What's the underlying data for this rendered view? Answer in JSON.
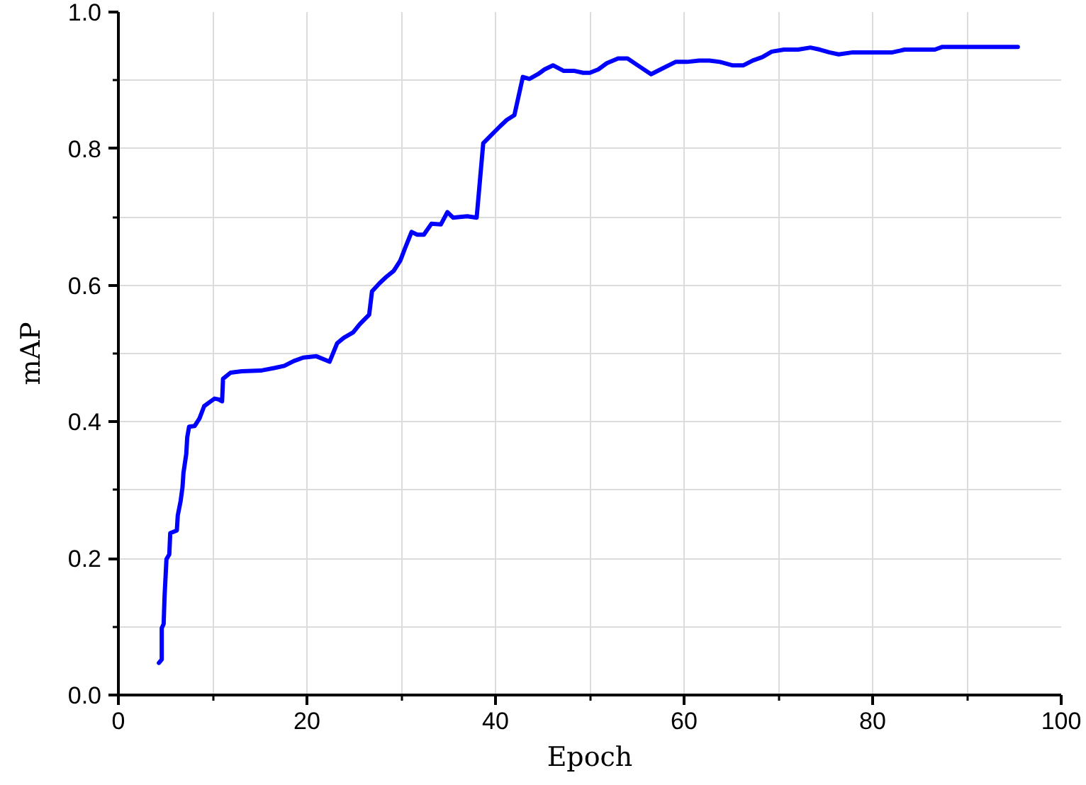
{
  "chart_data": {
    "type": "line",
    "xlabel": "Epoch",
    "ylabel": "mAP",
    "xlim": [
      0,
      100
    ],
    "ylim": [
      0,
      1.0
    ],
    "xticks": [
      0,
      {
        "value": 10,
        "label": null
      },
      20,
      {
        "value": 30,
        "label": null
      },
      40,
      {
        "value": 50,
        "label": null
      },
      60,
      {
        "value": 70,
        "label": null
      },
      80,
      {
        "value": 90,
        "label": null
      },
      100
    ],
    "yticks": [
      {
        "value": 0,
        "label": "0.0"
      },
      {
        "value": 0.1,
        "label": null
      },
      {
        "value": 0.2,
        "label": "0.2"
      },
      {
        "value": 0.3,
        "label": null
      },
      {
        "value": 0.4,
        "label": "0.4"
      },
      {
        "value": 0.5,
        "label": null
      },
      {
        "value": 0.6,
        "label": "0.6"
      },
      {
        "value": 0.7,
        "label": null
      },
      {
        "value": 0.8,
        "label": "0.8"
      },
      {
        "value": 0.9,
        "label": null
      },
      {
        "value": 1.0,
        "label": "1.0"
      }
    ],
    "grid": true,
    "marker": "none",
    "line_style": "solid",
    "x": [
      4.3,
      4.6,
      4.6,
      4.8,
      4.9,
      5.1,
      5.4,
      5.5,
      6.2,
      6.3,
      6.6,
      6.8,
      6.9,
      7.2,
      7.3,
      7.5,
      8.1,
      8.6,
      9.1,
      9.7,
      10.2,
      10.6,
      11.0,
      11.1,
      11.9,
      13.1,
      15.1,
      16.6,
      17.6,
      18.6,
      19.6,
      21.0,
      22.4,
      23.2,
      23.9,
      24.9,
      25.6,
      26.6,
      26.9,
      27.7,
      28.4,
      29.2,
      29.9,
      30.4,
      31.1,
      31.7,
      32.4,
      33.2,
      34.2,
      34.9,
      35.5,
      36.2,
      37.0,
      38.0,
      38.7,
      39.5,
      40.5,
      41.2,
      42.0,
      42.9,
      43.6,
      44.5,
      45.2,
      46.1,
      47.2,
      48.3,
      49.3,
      50.0,
      50.9,
      51.8,
      53.0,
      54.0,
      55.3,
      56.5,
      57.8,
      59.1,
      60.3,
      61.6,
      62.7,
      63.8,
      65.1,
      66.3,
      67.3,
      68.3,
      69.3,
      70.6,
      72.1,
      73.4,
      74.4,
      75.4,
      76.4,
      77.9,
      82.1,
      83.4,
      86.6,
      87.4,
      95.4
    ],
    "series": [
      {
        "color": "#0000ff",
        "values": [
          0.047,
          0.052,
          0.098,
          0.104,
          0.145,
          0.199,
          0.206,
          0.237,
          0.241,
          0.263,
          0.284,
          0.304,
          0.325,
          0.353,
          0.377,
          0.393,
          0.394,
          0.405,
          0.423,
          0.429,
          0.434,
          0.433,
          0.43,
          0.463,
          0.472,
          0.474,
          0.475,
          0.479,
          0.482,
          0.489,
          0.494,
          0.496,
          0.488,
          0.515,
          0.523,
          0.531,
          0.543,
          0.557,
          0.591,
          0.603,
          0.612,
          0.621,
          0.636,
          0.654,
          0.678,
          0.674,
          0.674,
          0.69,
          0.689,
          0.707,
          0.699,
          0.7,
          0.701,
          0.699,
          0.808,
          0.819,
          0.833,
          0.842,
          0.849,
          0.905,
          0.902,
          0.909,
          0.916,
          0.922,
          0.914,
          0.914,
          0.911,
          0.911,
          0.916,
          0.925,
          0.932,
          0.932,
          0.92,
          0.909,
          0.918,
          0.927,
          0.927,
          0.929,
          0.929,
          0.927,
          0.922,
          0.922,
          0.929,
          0.934,
          0.942,
          0.945,
          0.945,
          0.948,
          0.945,
          0.941,
          0.938,
          0.941,
          0.941,
          0.945,
          0.945,
          0.949,
          0.949
        ]
      }
    ]
  }
}
